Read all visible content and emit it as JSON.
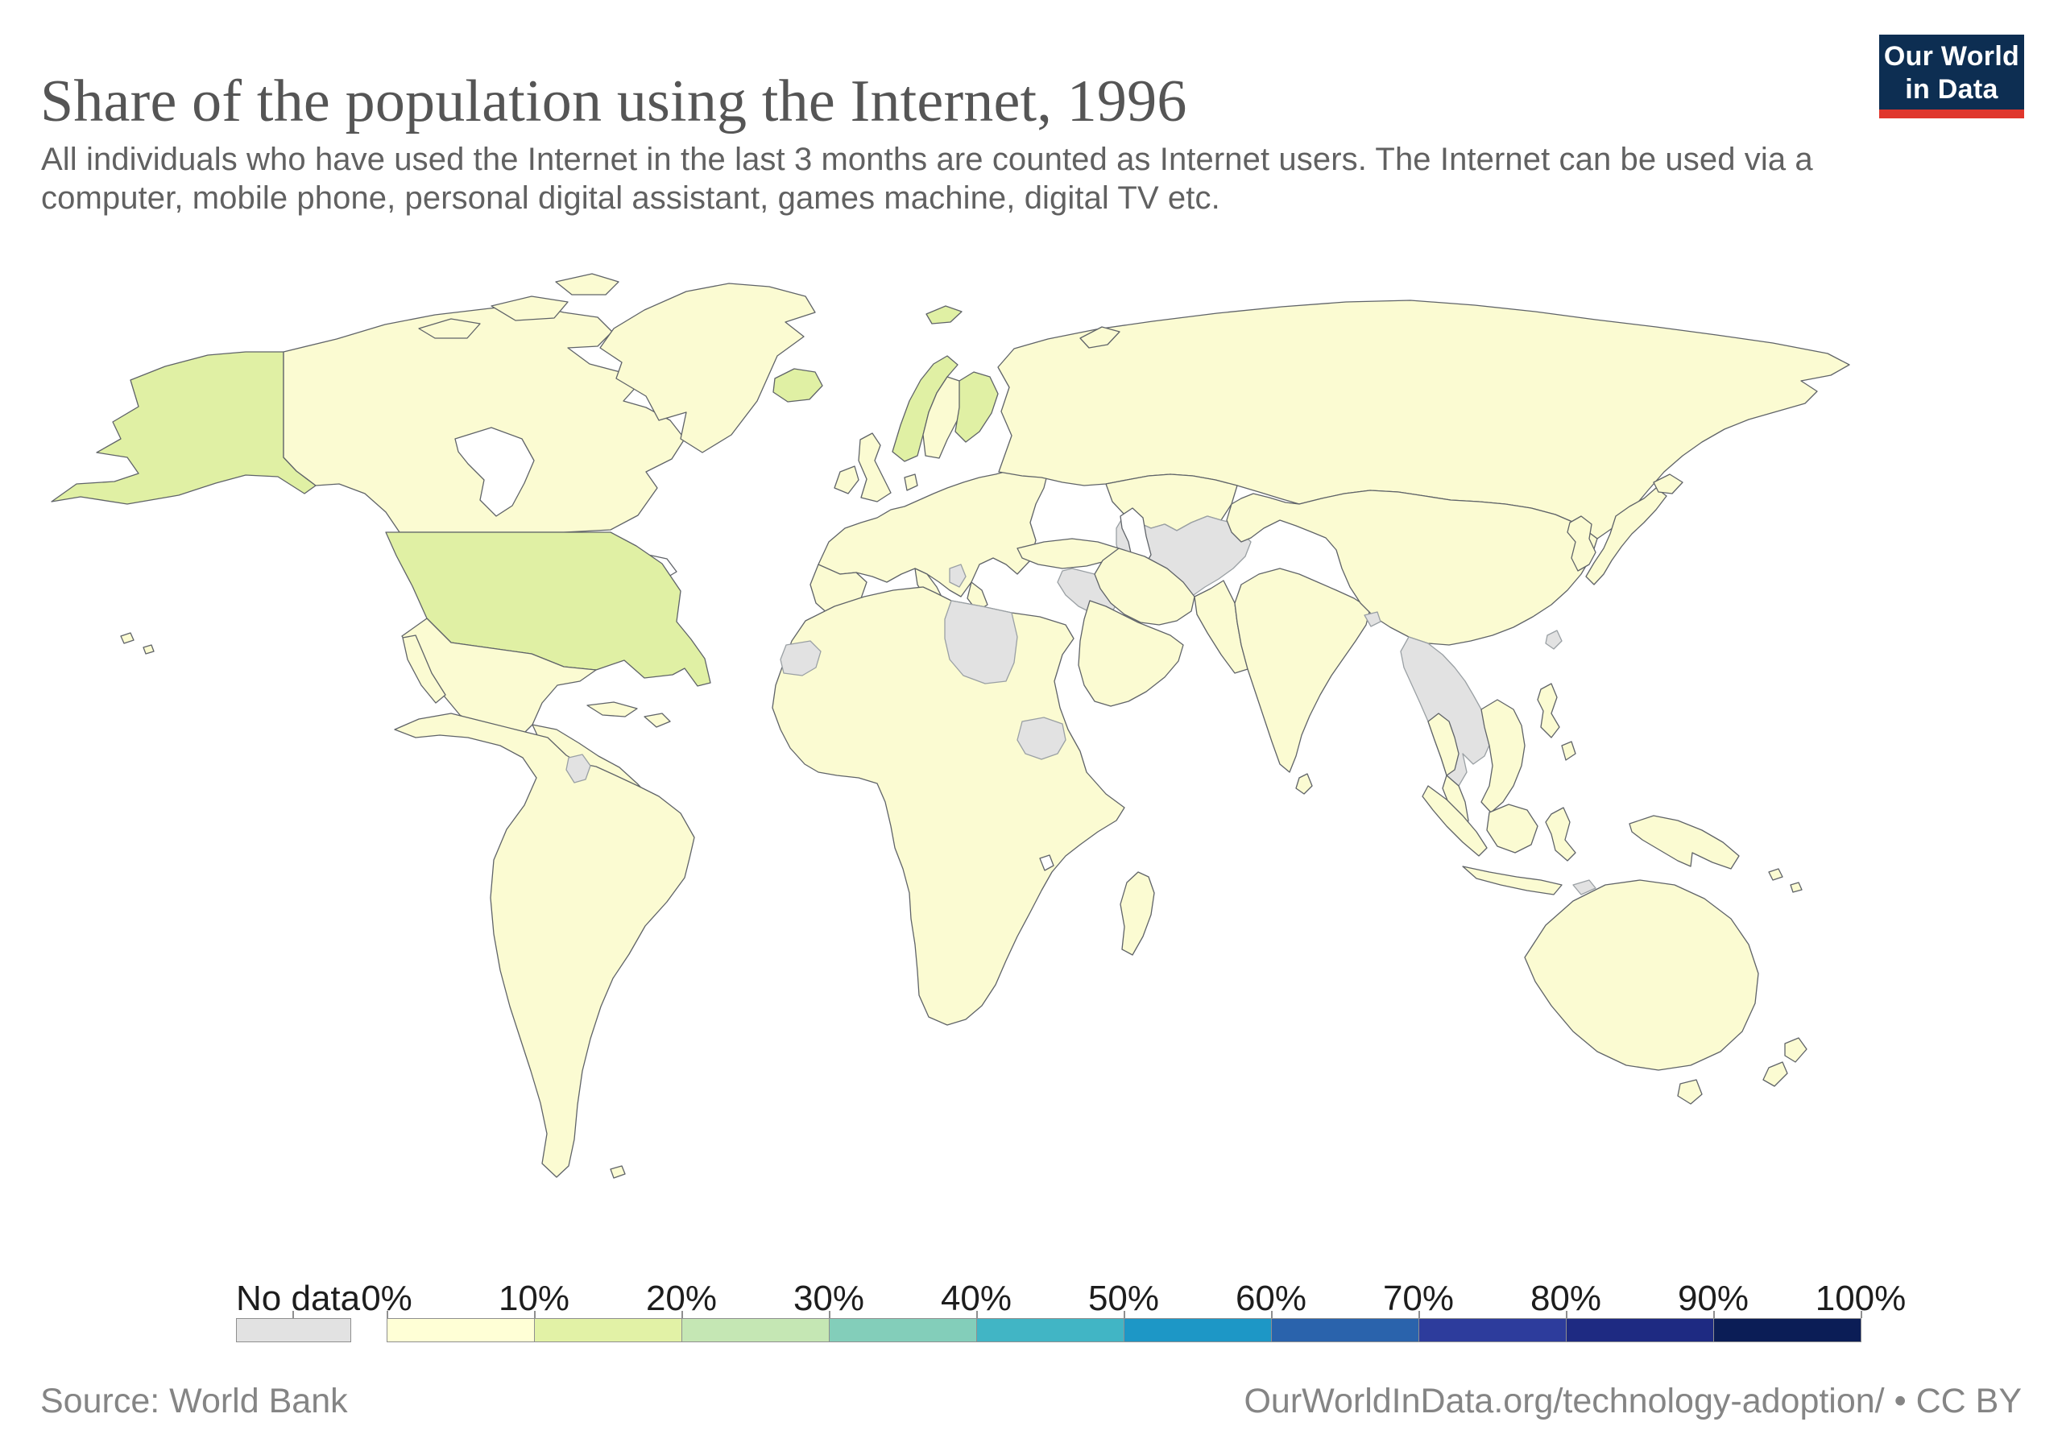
{
  "header": {
    "title": "Share of the population using the Internet, 1996",
    "subtitle": "All individuals who have used the Internet in the last 3 months are counted as Internet users. The Internet can be used via a computer, mobile phone, personal digital assistant, games machine, digital TV etc."
  },
  "logo": {
    "line1": "Our World",
    "line2": "in Data",
    "background": "#0d2e52",
    "accent": "#e0362c",
    "text_color": "#ffffff"
  },
  "chart_data": {
    "type": "heatmap",
    "subtype": "choropleth-world-map",
    "title": "Share of the population using the Internet, 1996",
    "year": "1996",
    "unit": "% of population",
    "legend_position": "bottom",
    "bins_percent": [
      0,
      10,
      20,
      30,
      40,
      50,
      60,
      70,
      80,
      90,
      100
    ],
    "regions_10_20_percent": [
      "United States",
      "Norway",
      "Finland",
      "Iceland",
      "Svalbard"
    ],
    "regions_0_10_percent": "All other countries shown in pale yellow (Canada, Mexico, South America, Europe, Russia, China, India, Africa, Australia, Japan, etc.)",
    "regions_no_data": [
      "Western Sahara",
      "Libya",
      "South Sudan",
      "Serbia",
      "Syria",
      "Iraq",
      "Turkmenistan",
      "Uzbekistan",
      "Tajikistan",
      "Afghanistan",
      "Bhutan",
      "Myanmar",
      "Laos",
      "Cambodia",
      "Taiwan",
      "French Guiana",
      "East Timor"
    ]
  },
  "map": {
    "colors": {
      "land": "#fbfbd2",
      "green_10_20": "#e0f0a4",
      "no_data": "#e2e2e2",
      "border": "#5f6368",
      "ocean": "#ffffff"
    }
  },
  "legend": {
    "no_data": {
      "label": "No data",
      "color": "#e2e2e2"
    },
    "bins": [
      {
        "label": "0%",
        "color": "#ffffd6"
      },
      {
        "label": "10%",
        "color": "#e2f2a6"
      },
      {
        "label": "20%",
        "color": "#c5e7b4"
      },
      {
        "label": "30%",
        "color": "#83ceba"
      },
      {
        "label": "40%",
        "color": "#41b5c5"
      },
      {
        "label": "50%",
        "color": "#1d97c6"
      },
      {
        "label": "60%",
        "color": "#2a63ac"
      },
      {
        "label": "70%",
        "color": "#2d3c9c"
      },
      {
        "label": "80%",
        "color": "#1e2a82"
      },
      {
        "label": "90%",
        "color": "#0b1d56"
      }
    ],
    "end_label": "100%"
  },
  "footer": {
    "source": "Source: World Bank",
    "license": "OurWorldInData.org/technology-adoption/ • CC BY"
  }
}
